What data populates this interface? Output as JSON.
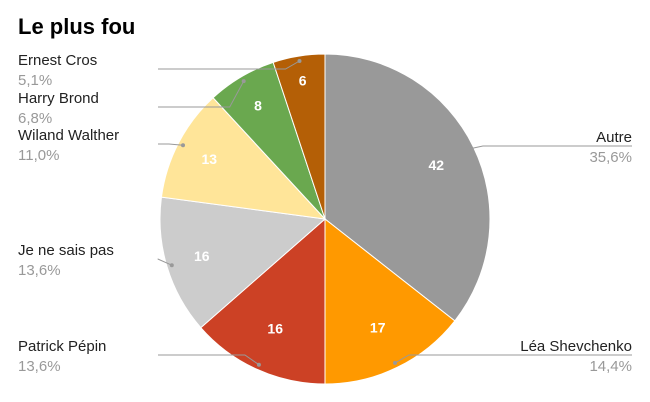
{
  "chart_data": {
    "type": "pie",
    "title": "Le plus fou",
    "slices": [
      {
        "name": "Autre",
        "value": 42,
        "percent_label": "35,6%",
        "color": "#999999"
      },
      {
        "name": "Léa Shevchenko",
        "value": 17,
        "percent_label": "14,4%",
        "color": "#ff9900"
      },
      {
        "name": "Patrick Pépin",
        "value": 16,
        "percent_label": "13,6%",
        "color": "#cc4125"
      },
      {
        "name": "Je ne sais pas",
        "value": 16,
        "percent_label": "13,6%",
        "color": "#cccccc"
      },
      {
        "name": "Wiland Walther",
        "value": 13,
        "percent_label": "11,0%",
        "color": "#ffe599"
      },
      {
        "name": "Harry Brond",
        "value": 8,
        "percent_label": "6,8%",
        "color": "#6aa84f"
      },
      {
        "name": "Ernest Cros",
        "value": 6,
        "percent_label": "5,1%",
        "color": "#b45f06"
      }
    ],
    "start_angle": "top",
    "direction": "clockwise",
    "legend": "callout labels outside slices"
  }
}
